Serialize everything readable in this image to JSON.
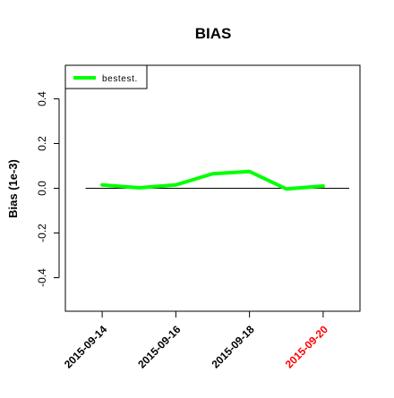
{
  "chart_data": {
    "type": "line",
    "title": "BIAS",
    "xlabel": "",
    "ylabel": "Bias (1e-3)",
    "x": [
      "2015-09-14",
      "2015-09-15",
      "2015-09-16",
      "2015-09-17",
      "2015-09-18",
      "2015-09-19",
      "2015-09-20"
    ],
    "x_ticks": [
      "2015-09-14",
      "2015-09-16",
      "2015-09-18",
      "2015-09-20"
    ],
    "highlighted_tick": "2015-09-20",
    "highlight_color": "#ff0000",
    "xlim": [
      "2015-09-13",
      "2015-09-21"
    ],
    "ylim": [
      -0.55,
      0.55
    ],
    "y_ticks": [
      "-0.4",
      "-0.2",
      "0.0",
      "0.2",
      "0.4"
    ],
    "reference_line": 0.0,
    "grid": false,
    "legend_position": "top-left",
    "series": [
      {
        "name": "bestest.",
        "color": "#00ff00",
        "values": [
          0.015,
          0.002,
          0.015,
          0.065,
          0.075,
          -0.003,
          0.01
        ]
      }
    ]
  }
}
